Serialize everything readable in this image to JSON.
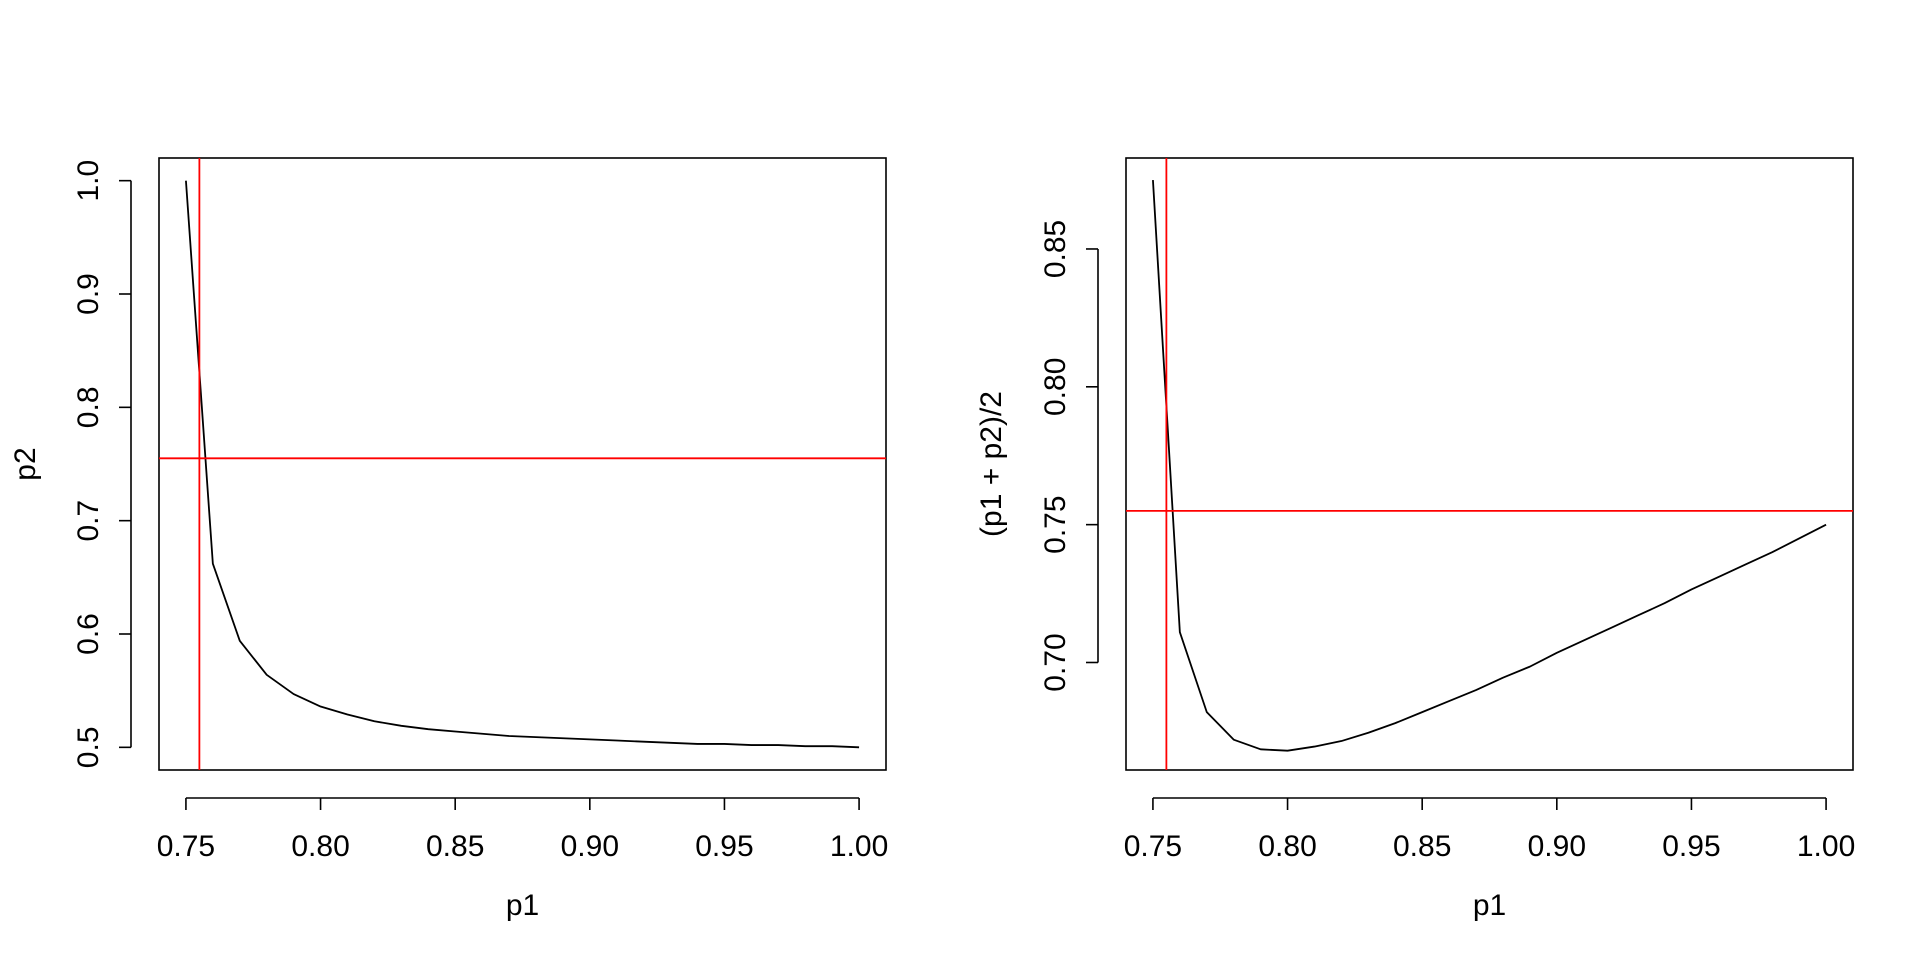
{
  "figure": {
    "panel_count": 2
  },
  "chart_data": [
    {
      "type": "line",
      "title": "",
      "xlabel": "p1",
      "ylabel": "p2",
      "xlim": [
        0.74,
        1.01
      ],
      "ylim": [
        0.48,
        1.02
      ],
      "xticks": [
        0.75,
        0.8,
        0.85,
        0.9,
        0.95,
        1.0
      ],
      "xtick_labels": [
        "0.75",
        "0.80",
        "0.85",
        "0.90",
        "0.95",
        "1.00"
      ],
      "yticks": [
        0.5,
        0.6,
        0.7,
        0.8,
        0.9,
        1.0
      ],
      "ytick_labels": [
        "0.5",
        "0.6",
        "0.7",
        "0.8",
        "0.9",
        "1.0"
      ],
      "grid": false,
      "series": [
        {
          "color": "#000000",
          "x": [
            0.75,
            0.76,
            0.77,
            0.78,
            0.79,
            0.8,
            0.81,
            0.82,
            0.83,
            0.84,
            0.85,
            0.86,
            0.87,
            0.88,
            0.89,
            0.9,
            0.91,
            0.92,
            0.93,
            0.94,
            0.95,
            0.96,
            0.97,
            0.98,
            0.99,
            1.0
          ],
          "y": [
            1.0,
            0.662,
            0.594,
            0.564,
            0.547,
            0.536,
            0.529,
            0.523,
            0.519,
            0.516,
            0.514,
            0.512,
            0.51,
            0.509,
            0.508,
            0.507,
            0.506,
            0.505,
            0.504,
            0.503,
            0.503,
            0.502,
            0.502,
            0.501,
            0.501,
            0.5
          ]
        }
      ],
      "reference_lines": [
        {
          "orientation": "vertical",
          "value": 0.755,
          "color": "#ff0000"
        },
        {
          "orientation": "horizontal",
          "value": 0.755,
          "color": "#ff0000"
        }
      ]
    },
    {
      "type": "line",
      "title": "",
      "xlabel": "p1",
      "ylabel": "(p1 + p2)/2",
      "xlim": [
        0.74,
        1.01
      ],
      "ylim": [
        0.661,
        0.883
      ],
      "xticks": [
        0.75,
        0.8,
        0.85,
        0.9,
        0.95,
        1.0
      ],
      "xtick_labels": [
        "0.75",
        "0.80",
        "0.85",
        "0.90",
        "0.95",
        "1.00"
      ],
      "yticks": [
        0.7,
        0.75,
        0.8,
        0.85
      ],
      "ytick_labels": [
        "0.70",
        "0.75",
        "0.80",
        "0.85"
      ],
      "grid": false,
      "series": [
        {
          "color": "#000000",
          "x": [
            0.75,
            0.76,
            0.77,
            0.78,
            0.79,
            0.8,
            0.81,
            0.82,
            0.83,
            0.84,
            0.85,
            0.86,
            0.87,
            0.88,
            0.89,
            0.9,
            0.91,
            0.92,
            0.93,
            0.94,
            0.95,
            0.96,
            0.97,
            0.98,
            0.99,
            1.0
          ],
          "y": [
            0.875,
            0.711,
            0.682,
            0.672,
            0.6685,
            0.668,
            0.6695,
            0.6715,
            0.6745,
            0.678,
            0.682,
            0.686,
            0.69,
            0.6945,
            0.6985,
            0.7035,
            0.708,
            0.7125,
            0.717,
            0.7215,
            0.7265,
            0.731,
            0.7355,
            0.74,
            0.745,
            0.75
          ]
        }
      ],
      "reference_lines": [
        {
          "orientation": "vertical",
          "value": 0.755,
          "color": "#ff0000"
        },
        {
          "orientation": "horizontal",
          "value": 0.755,
          "color": "#ff0000"
        }
      ]
    }
  ]
}
